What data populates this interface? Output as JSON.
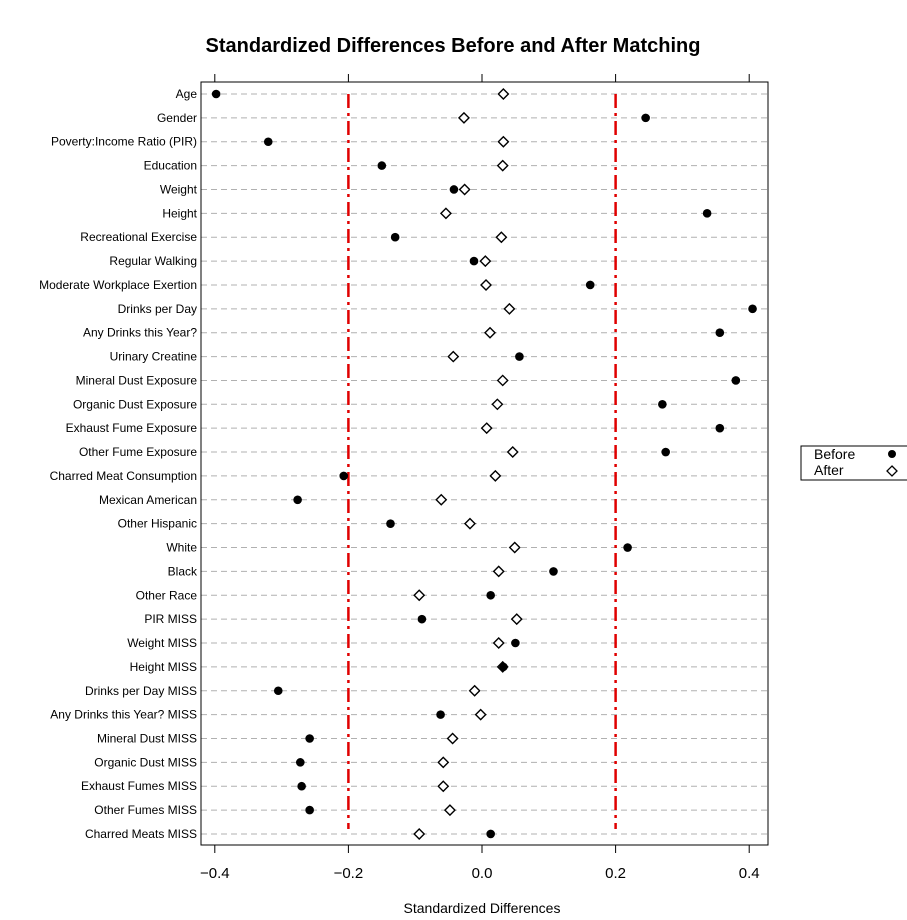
{
  "chart_data": {
    "type": "scatter",
    "title": "Standardized Differences Before and After Matching",
    "xlabel": "Standardized Differences",
    "xlim": [
      -0.42,
      0.43
    ],
    "xticks": [
      -0.4,
      -0.2,
      0.0,
      0.2,
      0.4
    ],
    "xtick_labels": [
      "−0.4",
      "−0.2",
      "0.0",
      "0.2",
      "0.4"
    ],
    "reference_lines": [
      -0.2,
      0.2
    ],
    "reference_line_color": "#e00000",
    "grid": "horizontal dashed",
    "legend_position": "right",
    "categories": [
      "Age",
      "Gender",
      "Poverty:Income Ratio (PIR)",
      "Education",
      "Weight",
      "Height",
      "Recreational Exercise",
      "Regular Walking",
      "Moderate Workplace Exertion",
      "Drinks per Day",
      "Any Drinks this Year?",
      "Urinary Creatine",
      "Mineral Dust Exposure",
      "Organic Dust Exposure",
      "Exhaust Fume Exposure",
      "Other Fume Exposure",
      "Charred Meat Consumption",
      "Mexican American",
      "Other Hispanic",
      "White",
      "Black",
      "Other Race",
      "PIR MISS",
      "Weight MISS",
      "Height MISS",
      "Drinks per Day MISS",
      "Any Drinks this Year? MISS",
      "Mineral Dust MISS",
      "Organic Dust MISS",
      "Exhaust Fumes MISS",
      "Other Fumes MISS",
      "Charred Meats MISS"
    ],
    "series": [
      {
        "name": "Before",
        "marker": "filled-circle",
        "values": [
          -0.398,
          0.245,
          -0.32,
          -0.15,
          -0.042,
          0.337,
          -0.13,
          -0.012,
          0.162,
          0.405,
          0.356,
          0.056,
          0.38,
          0.27,
          0.356,
          0.275,
          -0.207,
          -0.276,
          -0.137,
          0.218,
          0.107,
          0.013,
          -0.09,
          0.05,
          0.032,
          -0.305,
          -0.062,
          -0.258,
          -0.272,
          -0.27,
          -0.258,
          0.013
        ]
      },
      {
        "name": "After",
        "marker": "open-diamond",
        "values": [
          0.032,
          -0.027,
          0.032,
          0.031,
          -0.026,
          -0.054,
          0.029,
          0.005,
          0.006,
          0.041,
          0.012,
          -0.043,
          0.031,
          0.023,
          0.007,
          0.046,
          0.02,
          -0.061,
          -0.018,
          0.049,
          0.025,
          -0.094,
          0.052,
          0.025,
          0.031,
          -0.011,
          -0.002,
          -0.044,
          -0.058,
          -0.058,
          -0.048,
          -0.094
        ]
      }
    ]
  }
}
